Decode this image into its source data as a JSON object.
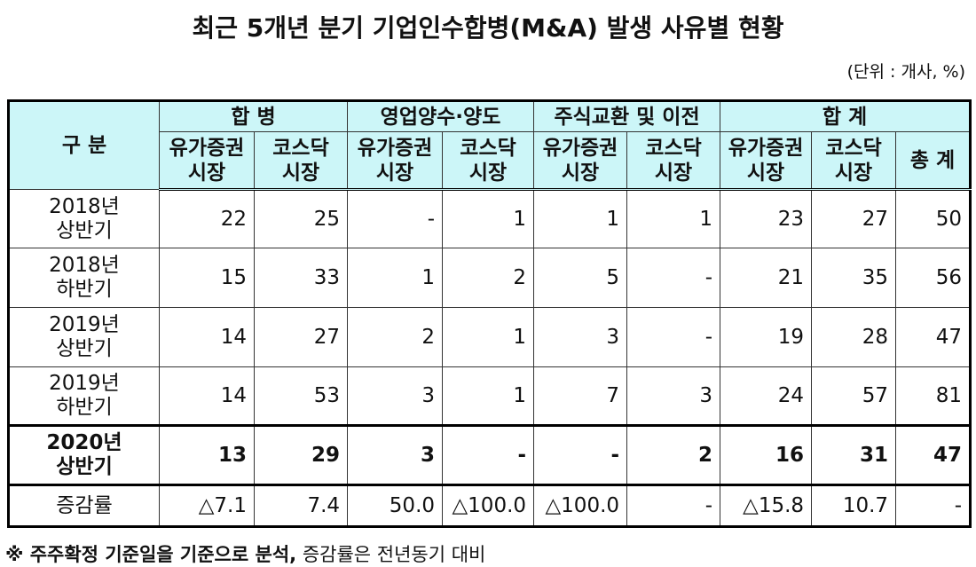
{
  "title": "최근 5개년 분기 기업인수합병(M&A) 발생 사유별 현황",
  "unit": "(단위 : 개사, %)",
  "table": {
    "corner": "구 분",
    "groups": [
      "합 병",
      "영업양수·양도",
      "주식교환 및 이전",
      "합 계"
    ],
    "subheaders": [
      [
        "유가증권",
        "시장"
      ],
      [
        "코스닥",
        "시장"
      ],
      [
        "유가증권",
        "시장"
      ],
      [
        "코스닥",
        "시장"
      ],
      [
        "유가증권",
        "시장"
      ],
      [
        "코스닥",
        "시장"
      ],
      [
        "유가증권",
        "시장"
      ],
      [
        "코스닥",
        "시장"
      ]
    ],
    "total": "총 계",
    "rows": [
      {
        "label": [
          "2018년",
          "상반기"
        ],
        "cells": [
          "22",
          "25",
          "-",
          "1",
          "1",
          "1",
          "23",
          "27",
          "50"
        ]
      },
      {
        "label": [
          "2018년",
          "하반기"
        ],
        "cells": [
          "15",
          "33",
          "1",
          "2",
          "5",
          "-",
          "21",
          "35",
          "56"
        ]
      },
      {
        "label": [
          "2019년",
          "상반기"
        ],
        "cells": [
          "14",
          "27",
          "2",
          "1",
          "3",
          "-",
          "19",
          "28",
          "47"
        ]
      },
      {
        "label": [
          "2019년",
          "하반기"
        ],
        "cells": [
          "14",
          "53",
          "3",
          "1",
          "7",
          "3",
          "24",
          "57",
          "81"
        ]
      },
      {
        "label": [
          "2020년",
          "상반기"
        ],
        "cells": [
          "13",
          "29",
          "3",
          "-",
          "-",
          "2",
          "16",
          "31",
          "47"
        ]
      },
      {
        "label": [
          "증감률"
        ],
        "cells": [
          "△7.1",
          "7.4",
          "50.0",
          "△100.0",
          "△100.0",
          "-",
          "△15.8",
          "10.7",
          "-"
        ]
      }
    ]
  },
  "footnote": {
    "bold": "※ 주주확정 기준일을 기준으로 분석,",
    "text": "증감률은 전년동기 대비"
  }
}
